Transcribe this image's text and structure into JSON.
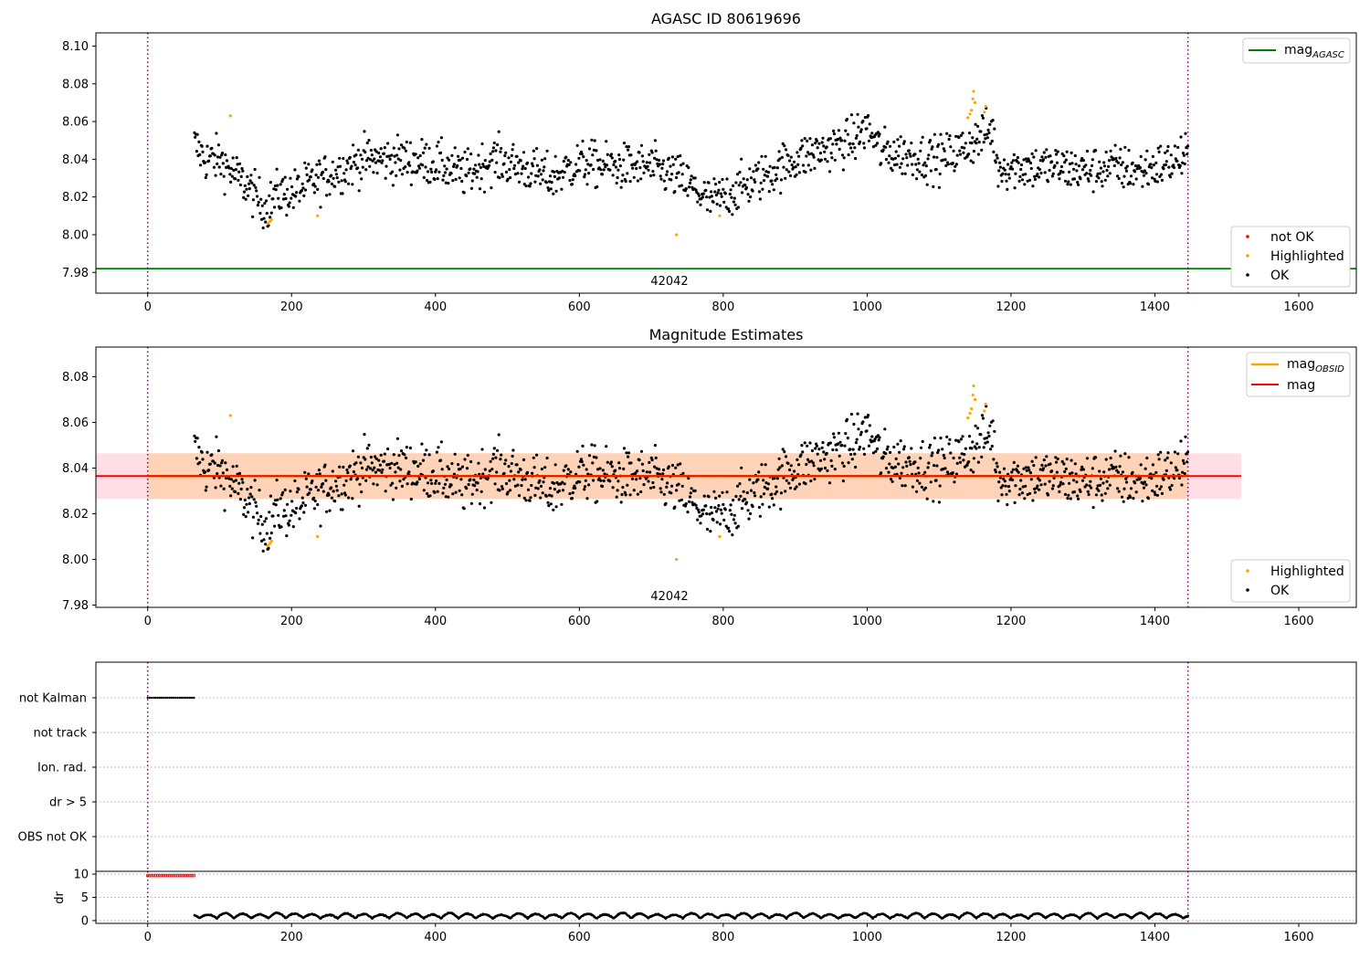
{
  "chart_data": [
    {
      "type": "scatter",
      "title": "AGASC ID 80619696",
      "xlim": [
        -72,
        1680
      ],
      "ylim": [
        7.969,
        8.107
      ],
      "x_ticks": [
        0,
        200,
        400,
        600,
        800,
        1000,
        1200,
        1400,
        1600
      ],
      "y_ticks": [
        7.98,
        8.0,
        8.02,
        8.04,
        8.06,
        8.08,
        8.1
      ],
      "y_tick_labels": [
        "7.98",
        "8.00",
        "8.02",
        "8.04",
        "8.06",
        "8.08",
        "8.10"
      ],
      "vlines": [
        0,
        1446
      ],
      "hline": {
        "name": "mag",
        "sub": "AGASC",
        "value": 7.982,
        "color": "#008000"
      },
      "obsid_label": {
        "text": "42042",
        "x": 723
      },
      "legend_lines": [
        {
          "name": "mag",
          "sub": "AGASC",
          "color": "#008000"
        }
      ],
      "legend_points": [
        {
          "name": "not OK",
          "color": "#ff0000"
        },
        {
          "name": "Highlighted",
          "color": "#ffa500"
        },
        {
          "name": "OK",
          "color": "#000000"
        }
      ],
      "highlighted": [
        [
          115,
          8.063
        ],
        [
          167,
          8.006
        ],
        [
          170,
          8.007
        ],
        [
          172,
          8.008
        ],
        [
          236,
          8.01
        ],
        [
          735,
          8.0
        ],
        [
          795,
          8.01
        ],
        [
          1140,
          8.062
        ],
        [
          1143,
          8.064
        ],
        [
          1145,
          8.066
        ],
        [
          1147,
          8.072
        ],
        [
          1148,
          8.076
        ],
        [
          1150,
          8.07
        ],
        [
          1163,
          8.065
        ],
        [
          1165,
          8.068
        ]
      ],
      "trend": [
        [
          65,
          8.048
        ],
        [
          80,
          8.04
        ],
        [
          100,
          8.04
        ],
        [
          115,
          8.034
        ],
        [
          135,
          8.027
        ],
        [
          165,
          8.014
        ],
        [
          180,
          8.022
        ],
        [
          200,
          8.022
        ],
        [
          230,
          8.028
        ],
        [
          260,
          8.033
        ],
        [
          300,
          8.04
        ],
        [
          350,
          8.04
        ],
        [
          400,
          8.038
        ],
        [
          440,
          8.032
        ],
        [
          480,
          8.04
        ],
        [
          520,
          8.036
        ],
        [
          560,
          8.03
        ],
        [
          600,
          8.038
        ],
        [
          650,
          8.036
        ],
        [
          700,
          8.036
        ],
        [
          740,
          8.03
        ],
        [
          760,
          8.024
        ],
        [
          780,
          8.018
        ],
        [
          800,
          8.02
        ],
        [
          830,
          8.026
        ],
        [
          860,
          8.032
        ],
        [
          900,
          8.04
        ],
        [
          940,
          8.045
        ],
        [
          980,
          8.05
        ],
        [
          1000,
          8.057
        ],
        [
          1020,
          8.044
        ],
        [
          1060,
          8.042
        ],
        [
          1100,
          8.04
        ],
        [
          1130,
          8.045
        ],
        [
          1150,
          8.05
        ],
        [
          1175,
          8.056
        ],
        [
          1180,
          8.036
        ],
        [
          1220,
          8.036
        ],
        [
          1260,
          8.036
        ],
        [
          1300,
          8.034
        ],
        [
          1340,
          8.036
        ],
        [
          1380,
          8.034
        ],
        [
          1420,
          8.038
        ],
        [
          1446,
          8.042
        ]
      ],
      "ok_x_range": [
        65,
        1446
      ],
      "ok_spread": 0.006
    },
    {
      "type": "scatter",
      "title": "Magnitude Estimates",
      "xlim": [
        -72,
        1680
      ],
      "ylim": [
        7.979,
        8.093
      ],
      "x_ticks": [
        0,
        200,
        400,
        600,
        800,
        1000,
        1200,
        1400,
        1600
      ],
      "y_ticks": [
        7.98,
        8.0,
        8.02,
        8.04,
        8.06,
        8.08
      ],
      "y_tick_labels": [
        "7.98",
        "8.00",
        "8.02",
        "8.04",
        "8.06",
        "8.08"
      ],
      "vlines": [
        0,
        1446
      ],
      "mag_line": {
        "name": "mag",
        "value": 8.0365,
        "color": "#ff0000"
      },
      "mag_band": {
        "lo": 8.0265,
        "hi": 8.0465,
        "x_end": 1520
      },
      "obsid_band": {
        "lo": 8.0265,
        "hi": 8.0465,
        "x_end": 1446
      },
      "obsid_label": {
        "text": "42042",
        "x": 723
      },
      "legend_lines": [
        {
          "name": "mag",
          "sub": "OBSID",
          "color": "#ffa500"
        },
        {
          "name": "mag",
          "sub": "",
          "color": "#ff0000"
        }
      ],
      "legend_points": [
        {
          "name": "Highlighted",
          "color": "#ffa500"
        },
        {
          "name": "OK",
          "color": "#000000"
        }
      ]
    },
    {
      "type": "scatter",
      "title": "",
      "xlim": [
        -72,
        1680
      ],
      "flag_labels": [
        "not Kalman",
        "not track",
        "Ion. rad.",
        "dr > 5",
        "OBS not OK"
      ],
      "not_kalman_range": [
        0,
        65
      ],
      "vlines": [
        0,
        1446
      ]
    },
    {
      "type": "scatter",
      "title": "",
      "xlim": [
        -72,
        1680
      ],
      "ylim": [
        -0.6,
        10.6
      ],
      "ylabel": "dr",
      "x_ticks": [
        0,
        200,
        400,
        600,
        800,
        1000,
        1200,
        1400,
        1600
      ],
      "x_tick_labels": [
        "0",
        "200",
        "400",
        "600",
        "800",
        "1000",
        "1200",
        "1400",
        "1600"
      ],
      "y_ticks": [
        0,
        5,
        10
      ],
      "y_tick_labels": [
        "0",
        "5",
        "10"
      ],
      "dr_high": {
        "value": 9.7,
        "range": [
          0,
          65
        ],
        "color": "#ff0000"
      },
      "dr_range": [
        65,
        1446
      ],
      "vlines": [
        0,
        1446
      ]
    }
  ]
}
